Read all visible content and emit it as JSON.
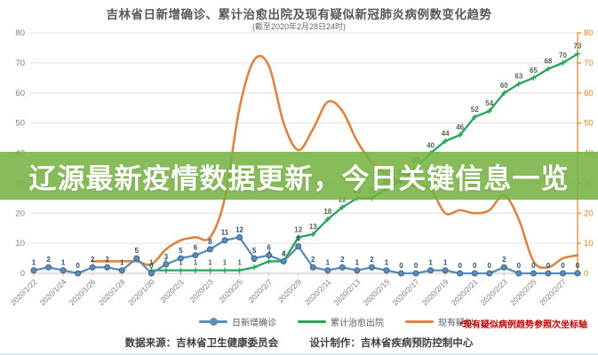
{
  "header": {
    "title": "吉林省日新增确诊、累计治愈出院及现有疑似新冠肺炎病例数变化趋势",
    "subtitle": "(截至2020年2月28日24时)"
  },
  "overlay_banner": {
    "text": "辽源最新疫情数据更新，今日关键信息一览",
    "bg": "#76b24a",
    "bg_opacity": 0.87,
    "text_color": "#ffffff"
  },
  "chart_data": {
    "type": "line",
    "title": "吉林省日新增确诊、累计治愈出院及现有疑似新冠肺炎病例数变化趋势",
    "subtitle": "(截至2020年2月28日24时)",
    "x": [
      "2020/1/22",
      "2020/1/23",
      "2020/1/24",
      "2020/1/25",
      "2020/1/26",
      "2020/1/27",
      "2020/1/28",
      "2020/1/29",
      "2020/1/30",
      "2020/1/31",
      "2020/2/1",
      "2020/2/2",
      "2020/2/3",
      "2020/2/4",
      "2020/2/5",
      "2020/2/6",
      "2020/2/7",
      "2020/2/8",
      "2020/2/9",
      "2020/2/10",
      "2020/2/11",
      "2020/2/12",
      "2020/2/13",
      "2020/2/14",
      "2020/2/15",
      "2020/2/16",
      "2020/2/17",
      "2020/2/18",
      "2020/2/19",
      "2020/2/20",
      "2020/2/21",
      "2020/2/22",
      "2020/2/23",
      "2020/2/24",
      "2020/2/25",
      "2020/2/26",
      "2020/2/27",
      "2020/2/28"
    ],
    "x_label_every": 2,
    "series": [
      {
        "name": "日新增确诊",
        "color": "#5b8db8",
        "marker": "circle",
        "axis": "left",
        "smooth": false,
        "labels": true,
        "label_color": "#2a4d6e",
        "values": [
          1,
          2,
          1,
          0,
          2,
          2,
          1,
          5,
          0,
          3,
          5,
          6,
          8,
          11,
          12,
          5,
          6,
          4,
          9,
          2,
          1,
          2,
          1,
          2,
          1,
          0,
          0,
          1,
          1,
          0,
          0,
          0,
          2,
          0,
          0,
          0,
          0,
          0
        ]
      },
      {
        "name": "累计治愈出院",
        "color": "#2aa35a",
        "marker": "cross",
        "axis": "left",
        "smooth": false,
        "labels": true,
        "label_color": "#4f6b4f",
        "values": [
          null,
          null,
          null,
          null,
          null,
          null,
          null,
          null,
          1,
          1,
          1,
          1,
          1,
          1,
          1,
          2,
          4,
          4,
          12,
          13,
          18,
          22,
          25,
          25,
          28,
          31,
          35,
          40,
          44,
          46,
          52,
          54,
          60,
          63,
          65,
          68,
          70,
          73
        ]
      },
      {
        "name": "现有疑似",
        "color": "#dd8540",
        "marker": "none",
        "axis": "right",
        "smooth": true,
        "labels": false,
        "label_color": "#a05a20",
        "values": [
          null,
          null,
          null,
          null,
          4,
          4,
          4,
          4,
          3,
          8,
          11,
          12,
          12,
          25,
          55,
          71,
          69,
          50,
          41,
          48,
          57,
          54,
          44,
          37,
          33,
          30,
          29,
          28,
          20,
          21,
          20,
          21,
          26,
          18,
          4,
          2,
          5,
          6
        ]
      }
    ],
    "left_axis": {
      "min": 0,
      "max": 80,
      "step": 10,
      "color": "#7f7f7f"
    },
    "right_axis": {
      "min": 0,
      "max": 80,
      "step": 10,
      "color": "#e0811f"
    },
    "grid": true,
    "grid_color": "#e0e0e0",
    "legend_position": "bottom"
  },
  "legend": {
    "items": [
      {
        "label": "日新增确诊"
      },
      {
        "label": "累计治愈出院"
      },
      {
        "label": "现有疑似"
      }
    ],
    "note": "*现有疑似病例趋势参照次坐标轴",
    "note_color": "#c00000"
  },
  "footer": {
    "source": "数据来源：吉林省卫生健康委员会",
    "design": "设计制作：吉林省疾病预防控制中心"
  }
}
